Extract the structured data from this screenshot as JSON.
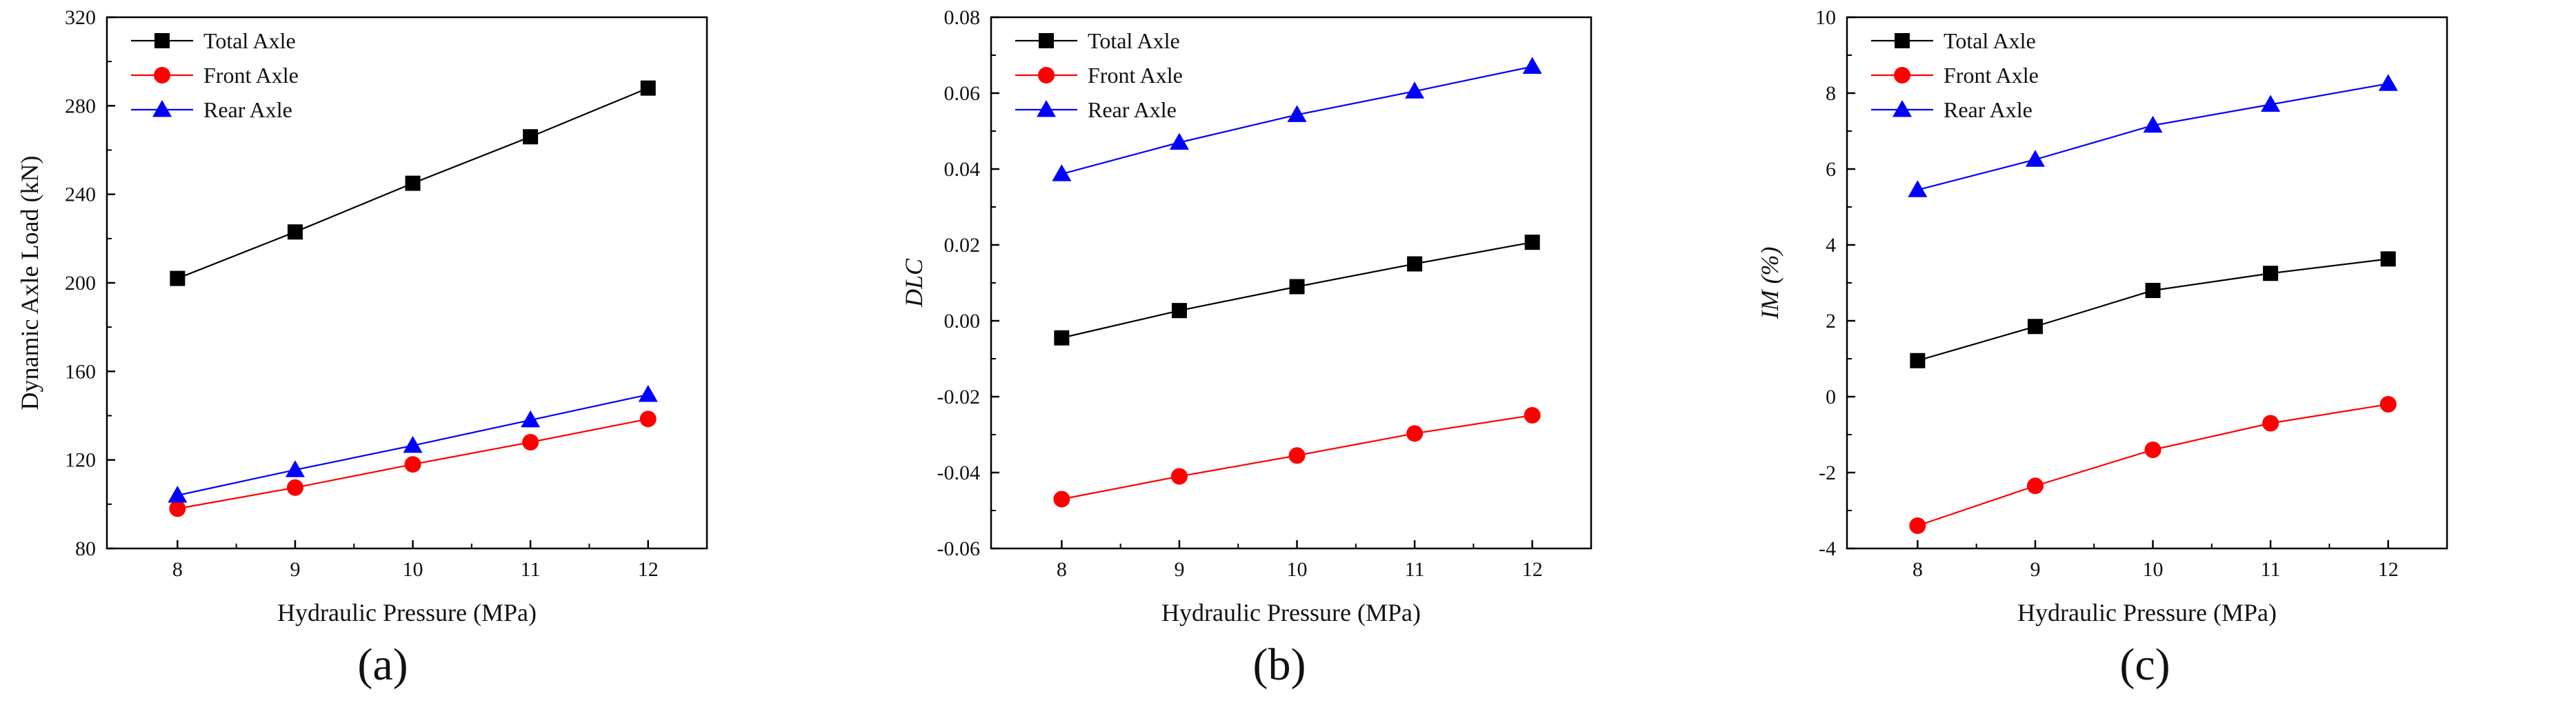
{
  "figure": {
    "panel_labels": [
      "(a)",
      "(b)",
      "(c)"
    ]
  },
  "colors": {
    "total": "#000000",
    "front": "#ff0000",
    "rear": "#0000ff",
    "axis": "#000000"
  },
  "chart_data": [
    {
      "id": "a",
      "type": "line",
      "title": "",
      "panel_label": "(a)",
      "xlabel": "Hydraulic Pressure (MPa)",
      "ylabel": "Dynamic Axle Load (kN)",
      "ylabel_italic": false,
      "x": [
        8,
        9,
        10,
        11,
        12
      ],
      "xlim": [
        7.4,
        12.5
      ],
      "xticks": [
        8,
        9,
        10,
        11,
        12
      ],
      "ylim": [
        80,
        320
      ],
      "yticks": [
        80,
        120,
        160,
        200,
        240,
        280,
        320
      ],
      "ytick_labels": [
        "80",
        "120",
        "160",
        "200",
        "240",
        "280",
        "320"
      ],
      "legend": "top-left",
      "series": [
        {
          "name": "Total Axle",
          "marker": "square",
          "color": "#000000",
          "values": [
            202,
            223,
            245,
            266,
            288
          ]
        },
        {
          "name": "Front Axle",
          "marker": "circle",
          "color": "#ff0000",
          "values": [
            98,
            107.5,
            118,
            128,
            138.5
          ]
        },
        {
          "name": "Rear Axle",
          "marker": "triangle",
          "color": "#0000ff",
          "values": [
            104,
            115.5,
            126.5,
            138,
            149.5
          ]
        }
      ]
    },
    {
      "id": "b",
      "type": "line",
      "title": "",
      "panel_label": "(b)",
      "xlabel": "Hydraulic Pressure (MPa)",
      "ylabel": "DLC",
      "ylabel_italic": true,
      "x": [
        8,
        9,
        10,
        11,
        12
      ],
      "xlim": [
        7.4,
        12.5
      ],
      "xticks": [
        8,
        9,
        10,
        11,
        12
      ],
      "ylim": [
        -0.06,
        0.08
      ],
      "yticks": [
        -0.06,
        -0.04,
        -0.02,
        0.0,
        0.02,
        0.04,
        0.06,
        0.08
      ],
      "ytick_labels": [
        "-0.06",
        "-0.04",
        "-0.02",
        "0.00",
        "0.02",
        "0.04",
        "0.06",
        "0.08"
      ],
      "legend": "top-left",
      "series": [
        {
          "name": "Total Axle",
          "marker": "square",
          "color": "#000000",
          "values": [
            -0.0045,
            0.0027,
            0.009,
            0.015,
            0.0207
          ]
        },
        {
          "name": "Front Axle",
          "marker": "circle",
          "color": "#ff0000",
          "values": [
            -0.047,
            -0.041,
            -0.0355,
            -0.0297,
            -0.0249
          ]
        },
        {
          "name": "Rear Axle",
          "marker": "triangle",
          "color": "#0000ff",
          "values": [
            0.0387,
            0.047,
            0.0543,
            0.0605,
            0.067
          ]
        }
      ]
    },
    {
      "id": "c",
      "type": "line",
      "title": "",
      "panel_label": "(c)",
      "xlabel": "Hydraulic Pressure (MPa)",
      "ylabel": "IM (%)",
      "ylabel_italic": true,
      "x": [
        8,
        9,
        10,
        11,
        12
      ],
      "xlim": [
        7.4,
        12.5
      ],
      "xticks": [
        8,
        9,
        10,
        11,
        12
      ],
      "ylim": [
        -4,
        10
      ],
      "yticks": [
        -4,
        -2,
        0,
        2,
        4,
        6,
        8,
        10
      ],
      "ytick_labels": [
        "-4",
        "-2",
        "0",
        "2",
        "4",
        "6",
        "8",
        "10"
      ],
      "legend": "top-left",
      "series": [
        {
          "name": "Total Axle",
          "marker": "square",
          "color": "#000000",
          "values": [
            0.95,
            1.85,
            2.8,
            3.25,
            3.63
          ]
        },
        {
          "name": "Front Axle",
          "marker": "circle",
          "color": "#ff0000",
          "values": [
            -3.4,
            -2.35,
            -1.4,
            -0.7,
            -0.2
          ]
        },
        {
          "name": "Rear Axle",
          "marker": "triangle",
          "color": "#0000ff",
          "values": [
            5.45,
            6.25,
            7.15,
            7.7,
            8.25
          ]
        }
      ]
    }
  ]
}
